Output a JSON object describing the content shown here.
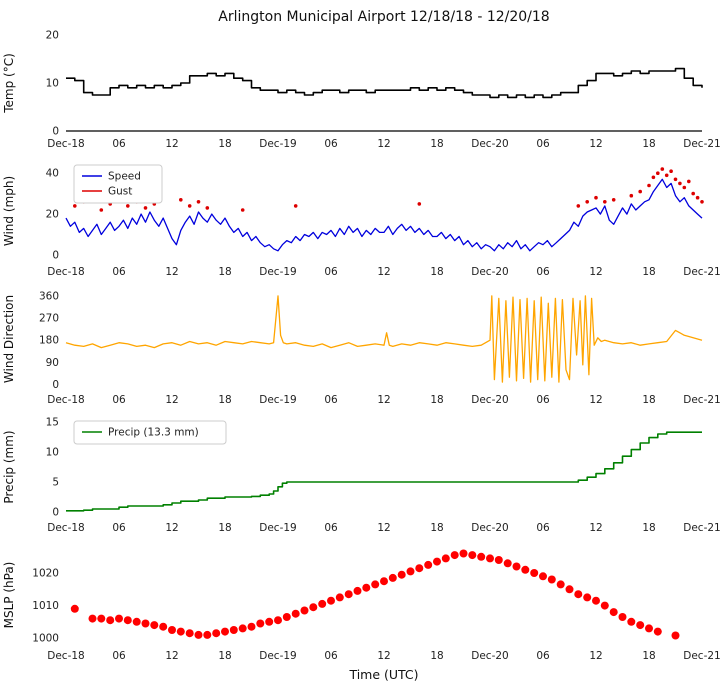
{
  "title": "Arlington Municipal Airport 12/18/18 - 12/20/18",
  "xlabel": "Time (UTC)",
  "x_axis": {
    "lim": [
      0,
      72
    ],
    "ticks": [
      0,
      6,
      12,
      18,
      24,
      30,
      36,
      42,
      48,
      54,
      60,
      66,
      72
    ],
    "tick_labels": [
      "Dec-18",
      "06",
      "12",
      "18",
      "Dec-19",
      "06",
      "12",
      "18",
      "Dec-20",
      "06",
      "12",
      "18",
      "Dec-21"
    ]
  },
  "colors": {
    "temp": "#000000",
    "wind_speed": "#0000dd",
    "wind_gust": "#dd0000",
    "wind_direction": "#ffa500",
    "precip": "#008000",
    "mslp": "#ff0000"
  },
  "chart_data": [
    {
      "type": "line",
      "ylabel": "Temp (°C)",
      "ylim": [
        0,
        20
      ],
      "yticks": [
        0,
        10,
        20
      ],
      "bottom_spine": true,
      "series": [
        {
          "name": "Temp",
          "type": "step",
          "color": "#000000",
          "width": 1.6,
          "x_start": 0,
          "x_step": 1,
          "values": [
            11,
            10.5,
            8,
            7.5,
            7.5,
            9,
            9.5,
            9,
            9.5,
            9,
            9.5,
            9,
            9.5,
            10,
            11.5,
            11.5,
            12,
            11.5,
            12,
            11,
            10.5,
            9,
            8.5,
            8.5,
            8,
            8.5,
            8,
            7.5,
            8,
            8.5,
            8.5,
            8,
            8.5,
            8.5,
            8,
            8.5,
            8.5,
            8.5,
            8.5,
            9,
            8.5,
            9,
            8.5,
            9,
            8.5,
            8,
            7.5,
            7.5,
            7,
            7.5,
            7,
            7.5,
            7,
            7.5,
            7,
            7.5,
            8,
            8,
            9.5,
            10.5,
            12,
            12,
            11.5,
            12,
            12.5,
            12,
            12.5,
            12.5,
            12.5,
            13,
            11,
            9.5,
            9
          ]
        }
      ]
    },
    {
      "type": "line",
      "ylabel": "Wind (mph)",
      "ylim": [
        -2,
        45
      ],
      "yticks": [
        0,
        20,
        40
      ],
      "legend": {
        "width": 88,
        "items": [
          {
            "label": "Speed",
            "color": "#0000dd"
          },
          {
            "label": "Gust",
            "color": "#dd0000"
          }
        ]
      },
      "series": [
        {
          "name": "Speed",
          "type": "line",
          "color": "#0000dd",
          "width": 1.3,
          "x_start": 0,
          "x_step": 0.5,
          "values": [
            18,
            14,
            16,
            11,
            13,
            9,
            12,
            15,
            10,
            13,
            16,
            12,
            14,
            17,
            13,
            18,
            15,
            20,
            16,
            21,
            17,
            14,
            18,
            13,
            8,
            5,
            12,
            16,
            19,
            15,
            21,
            18,
            16,
            20,
            17,
            15,
            18,
            14,
            11,
            13,
            9,
            11,
            7,
            9,
            6,
            4,
            5,
            3,
            2,
            5,
            7,
            6,
            9,
            7,
            10,
            9,
            11,
            8,
            11,
            10,
            12,
            9,
            13,
            10,
            14,
            11,
            13,
            9,
            12,
            10,
            13,
            11,
            11,
            14,
            10,
            13,
            15,
            12,
            14,
            11,
            13,
            10,
            12,
            9,
            9,
            11,
            8,
            10,
            7,
            9,
            5,
            7,
            4,
            6,
            3,
            5,
            4,
            2,
            5,
            3,
            6,
            4,
            7,
            3,
            5,
            2,
            4,
            6,
            5,
            7,
            4,
            6,
            8,
            10,
            12,
            16,
            14,
            19,
            21,
            22,
            23,
            20,
            24,
            17,
            15,
            19,
            23,
            20,
            25,
            22,
            24,
            26,
            27,
            31,
            34,
            37,
            33,
            35,
            29,
            26,
            28,
            24,
            22,
            20,
            18
          ]
        },
        {
          "name": "Gust",
          "type": "scatter",
          "color": "#dd0000",
          "radius": 1.8,
          "x": [
            1,
            2,
            4,
            5,
            6,
            7,
            8,
            9,
            10,
            13,
            14,
            15,
            16,
            20,
            26,
            40,
            58,
            59,
            60,
            61,
            62,
            64,
            65,
            66,
            66.5,
            67,
            67.5,
            68,
            68.5,
            69,
            69.5,
            70,
            70.5,
            71,
            71.5,
            72
          ],
          "y": [
            24,
            26,
            22,
            25,
            27,
            24,
            26,
            23,
            25,
            27,
            24,
            26,
            23,
            22,
            24,
            25,
            24,
            26,
            28,
            26,
            27,
            29,
            31,
            34,
            38,
            40,
            42,
            39,
            41,
            37,
            35,
            33,
            36,
            30,
            28,
            26
          ]
        }
      ]
    },
    {
      "type": "line",
      "ylabel": "Wind Direction",
      "ylim": [
        -10,
        380
      ],
      "yticks": [
        0,
        90,
        180,
        270,
        360
      ],
      "series": [
        {
          "name": "Direction",
          "type": "line",
          "color": "#ffa500",
          "width": 1.3,
          "x": [
            0,
            1,
            2,
            3,
            4,
            5,
            6,
            7,
            8,
            9,
            10,
            11,
            12,
            13,
            14,
            15,
            16,
            17,
            18,
            19,
            20,
            21,
            22,
            23,
            23.5,
            24,
            24.3,
            24.6,
            25,
            26,
            27,
            28,
            29,
            30,
            31,
            32,
            33,
            34,
            35,
            36,
            36.3,
            36.6,
            37,
            38,
            39,
            40,
            41,
            42,
            43,
            44,
            45,
            46,
            47,
            48,
            48.2,
            48.5,
            49,
            49.4,
            49.8,
            50.2,
            50.6,
            51,
            51.4,
            51.8,
            52.2,
            52.6,
            53,
            53.4,
            53.8,
            54.2,
            54.6,
            55,
            55.4,
            55.8,
            56.2,
            56.6,
            57,
            57.4,
            57.8,
            58.2,
            58.5,
            58.8,
            59.2,
            59.5,
            59.8,
            60.2,
            60.6,
            61,
            62,
            63,
            64,
            65,
            66,
            67,
            68,
            69,
            69.5,
            70,
            70.5,
            71,
            71.5,
            72
          ],
          "y": [
            170,
            160,
            155,
            165,
            150,
            160,
            170,
            165,
            155,
            160,
            150,
            165,
            170,
            160,
            175,
            165,
            170,
            160,
            175,
            170,
            165,
            175,
            170,
            165,
            170,
            360,
            200,
            170,
            165,
            170,
            160,
            155,
            165,
            150,
            160,
            170,
            155,
            160,
            165,
            160,
            210,
            160,
            155,
            165,
            160,
            170,
            165,
            160,
            170,
            165,
            160,
            155,
            160,
            180,
            360,
            20,
            350,
            10,
            340,
            30,
            355,
            15,
            345,
            25,
            350,
            10,
            340,
            20,
            355,
            15,
            330,
            30,
            350,
            10,
            345,
            60,
            20,
            350,
            120,
            340,
            80,
            360,
            40,
            350,
            160,
            190,
            175,
            180,
            170,
            165,
            170,
            160,
            165,
            170,
            175,
            220,
            210,
            200,
            195,
            190,
            185,
            180
          ]
        }
      ]
    },
    {
      "type": "line",
      "ylabel": "Precip (mm)",
      "ylim": [
        -0.5,
        15.5
      ],
      "yticks": [
        0,
        5,
        10,
        15
      ],
      "legend": {
        "width": 152,
        "items": [
          {
            "label": "Precip (13.3 mm)",
            "color": "#008000"
          }
        ]
      },
      "series": [
        {
          "name": "Precip",
          "type": "step",
          "color": "#008000",
          "width": 1.6,
          "x": [
            0,
            1,
            2,
            3,
            4,
            5,
            6,
            7,
            8,
            9,
            10,
            11,
            12,
            13,
            14,
            15,
            16,
            17,
            18,
            19,
            20,
            21,
            22,
            23,
            23.5,
            24,
            24.5,
            25,
            30,
            36,
            42,
            48,
            54,
            56,
            57,
            58,
            59,
            60,
            61,
            62,
            63,
            64,
            65,
            66,
            67,
            68,
            69,
            72
          ],
          "y": [
            0.2,
            0.2,
            0.3,
            0.5,
            0.5,
            0.5,
            0.8,
            1.0,
            1.0,
            1.0,
            1.0,
            1.2,
            1.5,
            1.8,
            1.8,
            2.0,
            2.3,
            2.3,
            2.5,
            2.5,
            2.5,
            2.6,
            2.8,
            3.0,
            3.5,
            4.2,
            4.8,
            5.0,
            5.0,
            5.0,
            5.0,
            5.0,
            5.0,
            5.0,
            5.0,
            5.3,
            5.8,
            6.4,
            7.2,
            8.2,
            9.3,
            10.4,
            11.5,
            12.4,
            13.0,
            13.3,
            13.3,
            13.3
          ]
        }
      ]
    },
    {
      "type": "scatter",
      "ylabel": "MSLP (hPa)",
      "ylim": [
        998.5,
        1028
      ],
      "yticks": [
        1000,
        1010,
        1020
      ],
      "series": [
        {
          "name": "MSLP",
          "type": "scatter",
          "color": "#ff0000",
          "radius": 4,
          "x": [
            1,
            3,
            4,
            5,
            6,
            7,
            8,
            9,
            10,
            11,
            12,
            13,
            14,
            15,
            16,
            17,
            18,
            19,
            20,
            21,
            22,
            23,
            24,
            25,
            26,
            27,
            28,
            29,
            30,
            31,
            32,
            33,
            34,
            35,
            36,
            37,
            38,
            39,
            40,
            41,
            42,
            43,
            44,
            45,
            46,
            47,
            48,
            49,
            50,
            51,
            52,
            53,
            54,
            55,
            56,
            57,
            58,
            59,
            60,
            61,
            62,
            63,
            64,
            65,
            66,
            67,
            69
          ],
          "y": [
            1009,
            1006,
            1006,
            1005.5,
            1006,
            1005.5,
            1005,
            1004.5,
            1004,
            1003.5,
            1002.5,
            1002,
            1001.5,
            1001,
            1001,
            1001.5,
            1002,
            1002.5,
            1003,
            1003.5,
            1004.5,
            1005,
            1005.5,
            1006.5,
            1007.5,
            1008.5,
            1009.5,
            1010.5,
            1011.5,
            1012.5,
            1013.5,
            1014.5,
            1015.5,
            1016.5,
            1017.5,
            1018.5,
            1019.5,
            1020.5,
            1021.5,
            1022.5,
            1023.5,
            1024.5,
            1025.5,
            1026,
            1025.5,
            1025,
            1024.5,
            1024,
            1023,
            1022,
            1021,
            1020,
            1019,
            1018,
            1016.5,
            1015,
            1013.5,
            1012.5,
            1011.5,
            1010,
            1008,
            1006.5,
            1005,
            1004,
            1003,
            1002,
            1000.8
          ]
        }
      ]
    }
  ]
}
